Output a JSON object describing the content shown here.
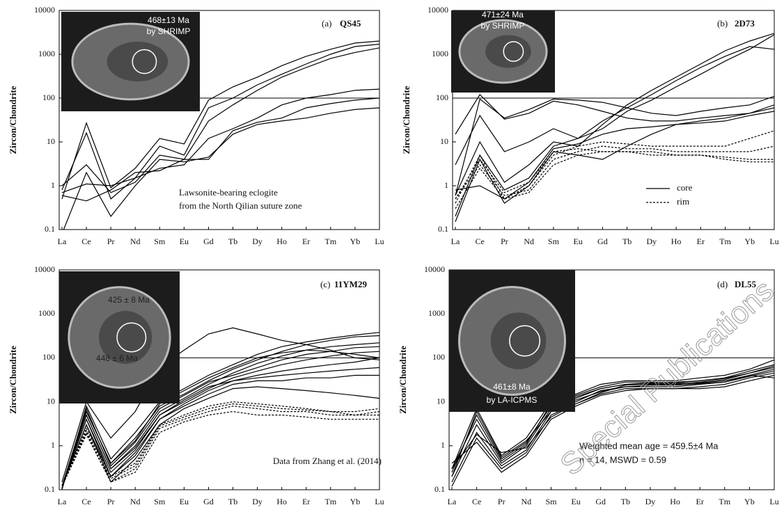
{
  "chart_data": [
    {
      "type": "line",
      "label": "(a)",
      "title": "QS45",
      "ylabel": "Zircon/Chondrite",
      "categories": [
        "La",
        "Ce",
        "Pr",
        "Nd",
        "Sm",
        "Eu",
        "Gd",
        "Tb",
        "Dy",
        "Ho",
        "Er",
        "Tm",
        "Yb",
        "Lu"
      ],
      "ylim": [
        0.1,
        10000
      ],
      "yticks": [
        0.1,
        1,
        10,
        100,
        1000,
        10000
      ],
      "log_scale": true,
      "reference_line": 100,
      "inset_texts": [
        "468±13 Ma",
        "by SHRIMP"
      ],
      "annotations": [
        "Lawsonite-bearing eclogite",
        "from the North Qilian suture zone"
      ],
      "series": [
        {
          "color": "#000",
          "style": "solid",
          "values": [
            0.5,
            27,
            0.9,
            2.5,
            12,
            9,
            90,
            180,
            300,
            550,
            900,
            1300,
            1800,
            2000
          ]
        },
        {
          "color": "#000",
          "style": "solid",
          "values": [
            0.8,
            16,
            0.5,
            1.5,
            8,
            5,
            60,
            100,
            200,
            350,
            600,
            1000,
            1500,
            1700
          ]
        },
        {
          "color": "#000",
          "style": "solid",
          "values": [
            1,
            3,
            0.7,
            1.2,
            5,
            4,
            30,
            70,
            150,
            300,
            500,
            800,
            1100,
            1400
          ]
        },
        {
          "color": "#000",
          "style": "solid",
          "values": [
            0.7,
            1.1,
            1,
            1.5,
            2.5,
            3,
            12,
            20,
            35,
            70,
            100,
            120,
            150,
            160
          ]
        },
        {
          "color": "#000",
          "style": "solid",
          "values": [
            0.6,
            0.45,
            0.8,
            2,
            2.2,
            4,
            4,
            18,
            28,
            35,
            60,
            75,
            90,
            100
          ]
        },
        {
          "color": "#000",
          "style": "solid",
          "values": [
            0.08,
            2,
            0.2,
            1,
            4,
            3.5,
            4.5,
            15,
            25,
            30,
            35,
            45,
            55,
            60
          ]
        }
      ]
    },
    {
      "type": "line",
      "label": "(b)",
      "title": "2D73",
      "ylabel": "Zircon/Chondrite",
      "categories": [
        "La",
        "Ce",
        "Pr",
        "Nd",
        "Sm",
        "Eu",
        "Gd",
        "Tb",
        "Dy",
        "Ho",
        "Er",
        "Tm",
        "Yb",
        "Lu"
      ],
      "ylim": [
        0.1,
        10000
      ],
      "yticks": [
        0.1,
        1,
        10,
        100,
        1000,
        10000
      ],
      "log_scale": true,
      "reference_line": 100,
      "inset_texts": [
        "471±24 Ma",
        "by SHRIMP"
      ],
      "legend": [
        {
          "label": "core",
          "style": "solid"
        },
        {
          "label": "rim",
          "style": "dashed"
        }
      ],
      "series": [
        {
          "color": "#000",
          "style": "solid",
          "values": [
            15,
            120,
            33,
            45,
            85,
            70,
            50,
            35,
            30,
            30,
            35,
            40,
            45,
            60
          ]
        },
        {
          "color": "#000",
          "style": "solid",
          "values": [
            0.6,
            95,
            35,
            55,
            95,
            90,
            80,
            60,
            45,
            40,
            50,
            60,
            70,
            110
          ]
        },
        {
          "color": "#000",
          "style": "solid",
          "values": [
            3,
            40,
            6,
            10,
            20,
            12,
            20,
            50,
            90,
            180,
            350,
            700,
            1300,
            2800
          ]
        },
        {
          "color": "#000",
          "style": "solid",
          "values": [
            0.6,
            10,
            1.2,
            3,
            10,
            8,
            25,
            70,
            150,
            300,
            600,
            1200,
            2000,
            3000
          ]
        },
        {
          "color": "#000",
          "style": "solid",
          "values": [
            0.2,
            5,
            0.8,
            1.5,
            8,
            12,
            30,
            60,
            120,
            250,
            500,
            900,
            1500,
            1300
          ]
        },
        {
          "color": "#000",
          "style": "solid",
          "values": [
            0.15,
            4,
            0.4,
            1,
            6,
            5,
            4,
            8,
            15,
            25,
            30,
            35,
            45,
            70
          ]
        },
        {
          "color": "#000",
          "style": "solid",
          "values": [
            0.8,
            1,
            0.5,
            1.2,
            7,
            9,
            15,
            20,
            22,
            25,
            27,
            30,
            40,
            50
          ]
        },
        {
          "color": "#000",
          "style": "dashed",
          "values": [
            0.4,
            5,
            0.5,
            1,
            5,
            8,
            10,
            9,
            8,
            8,
            8,
            8,
            12,
            18
          ]
        },
        {
          "color": "#000",
          "style": "dashed",
          "values": [
            0.5,
            3,
            0.6,
            0.8,
            4,
            6,
            8,
            7,
            7,
            6,
            6,
            6,
            6,
            8
          ]
        },
        {
          "color": "#000",
          "style": "dashed",
          "values": [
            0.3,
            2.5,
            0.5,
            0.7,
            3,
            5,
            6,
            6,
            5,
            5,
            5,
            4.5,
            4,
            4
          ]
        },
        {
          "color": "#000",
          "style": "dashed",
          "values": [
            0.5,
            4,
            0.7,
            1.2,
            6,
            7,
            6,
            6,
            6,
            5,
            5,
            4,
            3.5,
            3.5
          ]
        }
      ]
    },
    {
      "type": "line",
      "label": "(c)",
      "title": "11YM29",
      "ylabel": "Zircon/Chondrite",
      "categories": [
        "La",
        "Ce",
        "Pr",
        "Nd",
        "Sm",
        "Eu",
        "Gd",
        "Tb",
        "Dy",
        "Ho",
        "Er",
        "Tm",
        "Yb",
        "Lu"
      ],
      "ylim": [
        0.1,
        10000
      ],
      "yticks": [
        0.1,
        1,
        10,
        100,
        1000,
        10000
      ],
      "log_scale": true,
      "reference_line": 100,
      "inset_texts": [
        "425 ± 8 Ma",
        "448 ± 6 Ma"
      ],
      "annotations": [
        "Data from Zhang et al. (2014)"
      ],
      "series": [
        {
          "color": "#000",
          "style": "solid",
          "values": [
            0.15,
            10,
            1.5,
            6,
            60,
            150,
            350,
            480,
            350,
            250,
            200,
            150,
            100,
            90
          ]
        },
        {
          "color": "#000",
          "style": "solid",
          "values": [
            0.1,
            8,
            0.5,
            2,
            10,
            20,
            40,
            70,
            120,
            180,
            230,
            280,
            330,
            380
          ]
        },
        {
          "color": "#000",
          "style": "solid",
          "values": [
            0.12,
            6,
            0.4,
            1.5,
            8,
            15,
            30,
            55,
            90,
            140,
            200,
            250,
            300,
            320
          ]
        },
        {
          "color": "#000",
          "style": "solid",
          "values": [
            0.12,
            5,
            0.3,
            1,
            6,
            12,
            25,
            45,
            75,
            110,
            150,
            180,
            200,
            220
          ]
        },
        {
          "color": "#000",
          "style": "solid",
          "values": [
            0.12,
            7,
            0.35,
            1.2,
            7,
            14,
            28,
            40,
            60,
            90,
            120,
            140,
            170,
            180
          ]
        },
        {
          "color": "#000",
          "style": "solid",
          "values": [
            0.12,
            4,
            0.25,
            0.8,
            5,
            10,
            20,
            35,
            50,
            70,
            90,
            110,
            130,
            140
          ]
        },
        {
          "color": "#000",
          "style": "solid",
          "values": [
            0.12,
            5,
            0.3,
            0.9,
            5,
            11,
            22,
            30,
            40,
            50,
            60,
            70,
            80,
            100
          ]
        },
        {
          "color": "#000",
          "style": "solid",
          "values": [
            0.12,
            3,
            0.2,
            0.6,
            4,
            9,
            18,
            30,
            35,
            40,
            45,
            50,
            55,
            60
          ]
        },
        {
          "color": "#000",
          "style": "solid",
          "values": [
            0.12,
            4,
            0.2,
            0.7,
            4,
            8,
            15,
            25,
            30,
            30,
            35,
            35,
            40,
            40
          ]
        },
        {
          "color": "#000",
          "style": "solid",
          "values": [
            0.12,
            3,
            0.15,
            0.5,
            3,
            7,
            12,
            20,
            22,
            20,
            18,
            16,
            14,
            12
          ]
        },
        {
          "color": "#000",
          "style": "solid",
          "values": [
            0.12,
            6,
            0.4,
            1.3,
            9,
            18,
            35,
            60,
            100,
            130,
            150,
            140,
            120,
            100
          ]
        },
        {
          "color": "#000",
          "style": "dashed",
          "values": [
            0.12,
            2.5,
            0.2,
            0.4,
            3,
            5,
            8,
            10,
            9,
            8,
            7,
            6,
            6,
            7
          ]
        },
        {
          "color": "#000",
          "style": "dashed",
          "values": [
            0.12,
            2,
            0.15,
            0.3,
            2.5,
            4,
            6,
            8,
            7,
            6,
            6,
            5,
            5,
            5
          ]
        },
        {
          "color": "#000",
          "style": "dashed",
          "values": [
            0.12,
            1.8,
            0.15,
            0.25,
            2,
            3.5,
            5,
            6,
            5,
            5,
            4.5,
            4,
            4,
            4
          ]
        },
        {
          "color": "#000",
          "style": "dashed",
          "values": [
            0.12,
            2.2,
            0.18,
            0.35,
            2.8,
            4.5,
            7,
            9,
            8,
            7,
            6.5,
            6,
            5,
            6
          ]
        }
      ]
    },
    {
      "type": "line",
      "label": "(d)",
      "title": "DL55",
      "ylabel": "Zircon/Chondrite",
      "categories": [
        "La",
        "Ce",
        "Pr",
        "Nd",
        "Sm",
        "Eu",
        "Gd",
        "Tb",
        "Dy",
        "Ho",
        "Er",
        "Tm",
        "Yb",
        "Lu"
      ],
      "ylim": [
        0.1,
        10000
      ],
      "yticks": [
        0.1,
        1,
        10,
        100,
        1000,
        10000
      ],
      "log_scale": true,
      "reference_line": 100,
      "inset_texts": [
        "461±8 Ma",
        "by LA-ICPMS"
      ],
      "annotations": [
        "Weighted mean age = 459.5±4 Ma",
        "n = 14, MSWD = 0.59"
      ],
      "series": [
        {
          "color": "#000",
          "style": "solid",
          "values": [
            0.3,
            7,
            0.6,
            1.5,
            10,
            15,
            25,
            30,
            30,
            30,
            35,
            40,
            55,
            90
          ]
        },
        {
          "color": "#000",
          "style": "solid",
          "values": [
            0.25,
            5,
            0.5,
            1.2,
            8,
            13,
            20,
            25,
            27,
            28,
            30,
            35,
            50,
            70
          ]
        },
        {
          "color": "#000",
          "style": "solid",
          "values": [
            0.2,
            3,
            0.4,
            1,
            7,
            12,
            20,
            25,
            25,
            25,
            28,
            32,
            45,
            60
          ]
        },
        {
          "color": "#000",
          "style": "solid",
          "values": [
            0.15,
            2,
            0.35,
            0.8,
            6,
            10,
            18,
            22,
            22,
            22,
            25,
            28,
            40,
            55
          ]
        },
        {
          "color": "#000",
          "style": "solid",
          "values": [
            0.12,
            1.5,
            0.3,
            0.7,
            5,
            9,
            15,
            20,
            20,
            20,
            22,
            25,
            35,
            45
          ]
        },
        {
          "color": "#000",
          "style": "solid",
          "values": [
            0.4,
            1.2,
            0.25,
            0.6,
            4,
            8,
            14,
            18,
            20,
            20,
            20,
            22,
            30,
            40
          ]
        },
        {
          "color": "#000",
          "style": "solid",
          "values": [
            0.3,
            4,
            0.45,
            1.1,
            9,
            14,
            22,
            28,
            28,
            27,
            30,
            34,
            45,
            65
          ]
        },
        {
          "color": "#000",
          "style": "solid",
          "values": [
            0.2,
            6,
            0.55,
            1.3,
            6,
            11,
            17,
            22,
            24,
            24,
            26,
            28,
            38,
            50
          ]
        },
        {
          "color": "#000",
          "style": "solid",
          "values": [
            0.3,
            1.8,
            0.7,
            0.9,
            4.5,
            9,
            16,
            24,
            26,
            26,
            27,
            30,
            40,
            35
          ]
        }
      ]
    }
  ],
  "watermark": "Special Publications"
}
